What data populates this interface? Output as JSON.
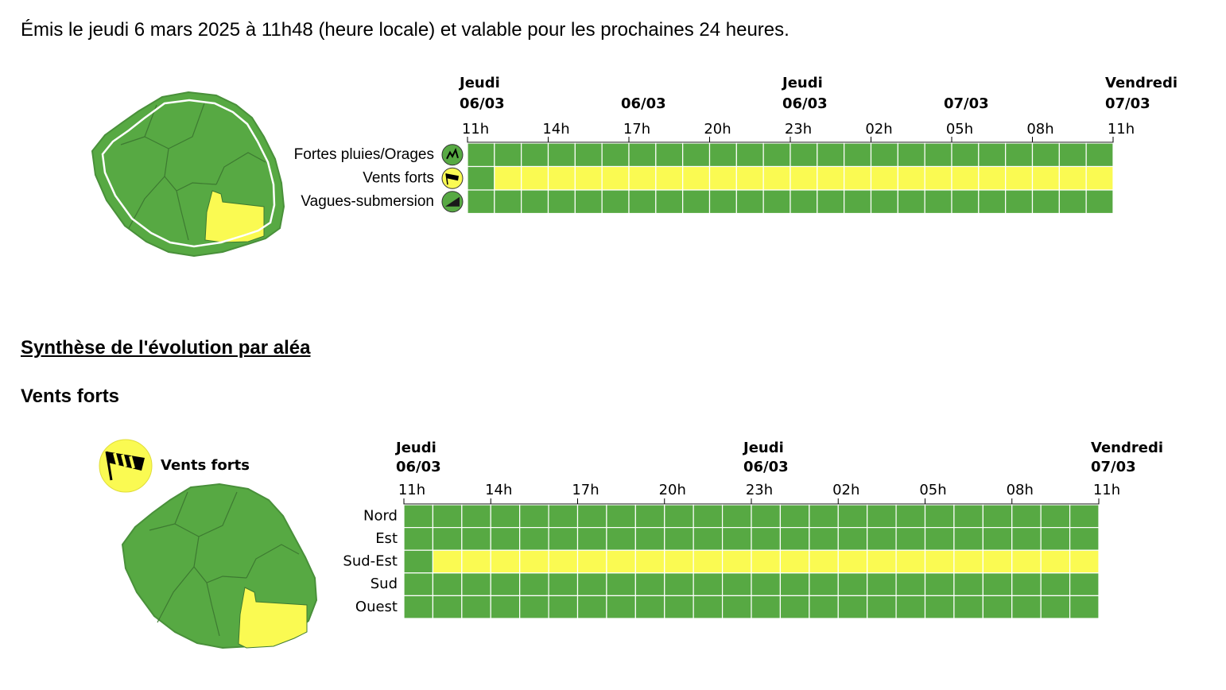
{
  "issued_text": "Émis le jeudi 6 mars 2025 à 11h48 (heure locale) et valable pour les prochaines 24 heures.",
  "colors": {
    "green": "#57a943",
    "yellow": "#fafa52",
    "grid": "#ffffff"
  },
  "overview": {
    "day_headers": [
      {
        "day": "Jeudi",
        "date": "06/03",
        "hour_index": 0
      },
      {
        "day": "",
        "date": "06/03",
        "hour_index": 2
      },
      {
        "day": "Jeudi",
        "date": "06/03",
        "hour_index": 4
      },
      {
        "day": "",
        "date": "07/03",
        "hour_index": 6
      },
      {
        "day": "Vendredi",
        "date": "07/03",
        "hour_index": 8
      }
    ],
    "hours": [
      "11h",
      "14h",
      "17h",
      "20h",
      "23h",
      "02h",
      "05h",
      "08h",
      "11h"
    ],
    "rows": [
      {
        "label": "Fortes pluies/Orages",
        "icon": "rain-storm-icon",
        "segments": [
          {
            "color": "green",
            "cells": 24
          }
        ]
      },
      {
        "label": "Vents forts",
        "icon": "wind-icon",
        "segments": [
          {
            "color": "green",
            "cells": 1
          },
          {
            "color": "yellow",
            "cells": 23
          }
        ]
      },
      {
        "label": "Vagues-submersion",
        "icon": "waves-icon",
        "segments": [
          {
            "color": "green",
            "cells": 24
          }
        ]
      }
    ],
    "map_zones": {
      "north": "green",
      "west": "green",
      "east": "green",
      "south_west": "green",
      "south_east": "yellow"
    }
  },
  "synthesis_title": "Synthèse de l'évolution par aléa",
  "hazard": {
    "title": "Vents forts",
    "legend_label": "Vents forts",
    "legend_icon": "wind-icon",
    "day_headers": [
      {
        "day": "Jeudi",
        "date": "06/03",
        "hour_index": 0
      },
      {
        "day": "Jeudi",
        "date": "06/03",
        "hour_index": 4
      },
      {
        "day": "Vendredi",
        "date": "07/03",
        "hour_index": 8
      }
    ],
    "hours": [
      "11h",
      "14h",
      "17h",
      "20h",
      "23h",
      "02h",
      "05h",
      "08h",
      "11h"
    ],
    "rows": [
      {
        "label": "Nord",
        "segments": [
          {
            "color": "green",
            "cells": 24
          }
        ]
      },
      {
        "label": "Est",
        "segments": [
          {
            "color": "green",
            "cells": 24
          }
        ]
      },
      {
        "label": "Sud-Est",
        "segments": [
          {
            "color": "green",
            "cells": 1
          },
          {
            "color": "yellow",
            "cells": 23
          }
        ]
      },
      {
        "label": "Sud",
        "segments": [
          {
            "color": "green",
            "cells": 24
          }
        ]
      },
      {
        "label": "Ouest",
        "segments": [
          {
            "color": "green",
            "cells": 24
          }
        ]
      }
    ],
    "map_zones": {
      "north": "green",
      "west": "green",
      "east": "green",
      "south_west": "green",
      "south_east": "yellow"
    }
  }
}
